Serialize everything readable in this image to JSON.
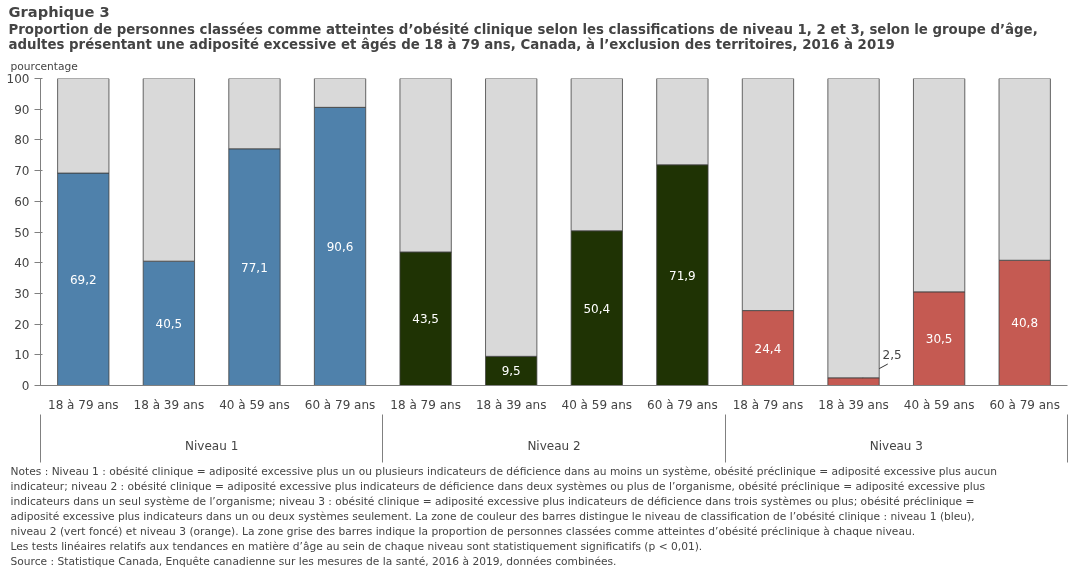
{
  "chart_data": {
    "type": "bar",
    "stacked": true,
    "title": "Graphique 3",
    "subtitle": "Proportion de personnes classées comme atteintes d’obésité clinique selon les classifications de niveau 1, 2 et 3, selon le groupe d’âge, adultes présentant une adiposité excessive et âgés de 18 à 79 ans, Canada, à l’exclusion des territoires, 2016 à 2019",
    "ylabel": "pourcentage",
    "categories": [
      "18 à 79 ans",
      "18 à 39 ans",
      "40 à 59 ans",
      "60 à 79 ans",
      "18 à 79 ans",
      "18 à 39 ans",
      "40 à 59 ans",
      "60 à 79 ans",
      "18 à 79 ans",
      "18 à 39 ans",
      "40 à 59 ans",
      "60 à 79 ans"
    ],
    "series": [
      {
        "colors": [
          "#4f81ab",
          "#4f81ab",
          "#4f81ab",
          "#4f81ab",
          "#1f3304",
          "#1f3304",
          "#1f3304",
          "#1f3304",
          "#c55a52",
          "#c55a52",
          "#c55a52",
          "#c55a52"
        ],
        "values": [
          69.2,
          40.5,
          77.1,
          90.6,
          43.5,
          9.5,
          50.4,
          71.9,
          24.4,
          2.5,
          30.5,
          40.8
        ],
        "value_labels": [
          "69,2",
          "40,5",
          "77,1",
          "90,6",
          "43,5",
          "9,5",
          "50,4",
          "71,9",
          "24,4",
          "2,5",
          "30,5",
          "40,8"
        ]
      },
      {
        "color": "#d9d9d9",
        "values": [
          30.8,
          59.5,
          22.9,
          9.4,
          56.5,
          90.5,
          49.6,
          28.1,
          75.6,
          97.5,
          69.5,
          59.2
        ]
      }
    ],
    "ylim": [
      0,
      100
    ],
    "yticks": [
      0,
      10,
      20,
      30,
      40,
      50,
      60,
      70,
      80,
      90,
      100
    ],
    "annotations": [
      "Niveau 1",
      "Niveau 2",
      "Niveau 3",
      "Notes : Niveau 1 : obésité clinique = adiposité excessive plus un ou plusieurs indicateurs de déficience dans au moins un système, obésité préclinique = adiposité excessive plus aucun indicateur; niveau 2 : obésité clinique = adiposité excessive plus indicateurs de déficience dans deux systèmes ou plus de l’organisme, obésité préclinique = adiposité excessive plus indicateurs dans un seul système de l’organisme; niveau 3 : obésité clinique = adiposité excessive plus indicateurs de déficience dans trois systèmes ou plus; obésité préclinique = adiposité excessive plus indicateurs dans un ou deux systèmes seulement. La zone de couleur des barres distingue le niveau de classification de l’obésité clinique : niveau 1 (bleu), niveau 2 (vert foncé) et niveau 3 (orange). La zone grise des barres indique la proportion de personnes classées comme atteintes d’obésité préclinique à chaque niveau.",
      "Les tests linéaires relatifs aux tendances en matière d’âge au sein de chaque niveau sont statistiquement significatifs (p < 0,01).",
      "Source : Statistique Canada, Enquête canadienne sur les mesures de la santé, 2016 à 2019, données combinées."
    ]
  }
}
